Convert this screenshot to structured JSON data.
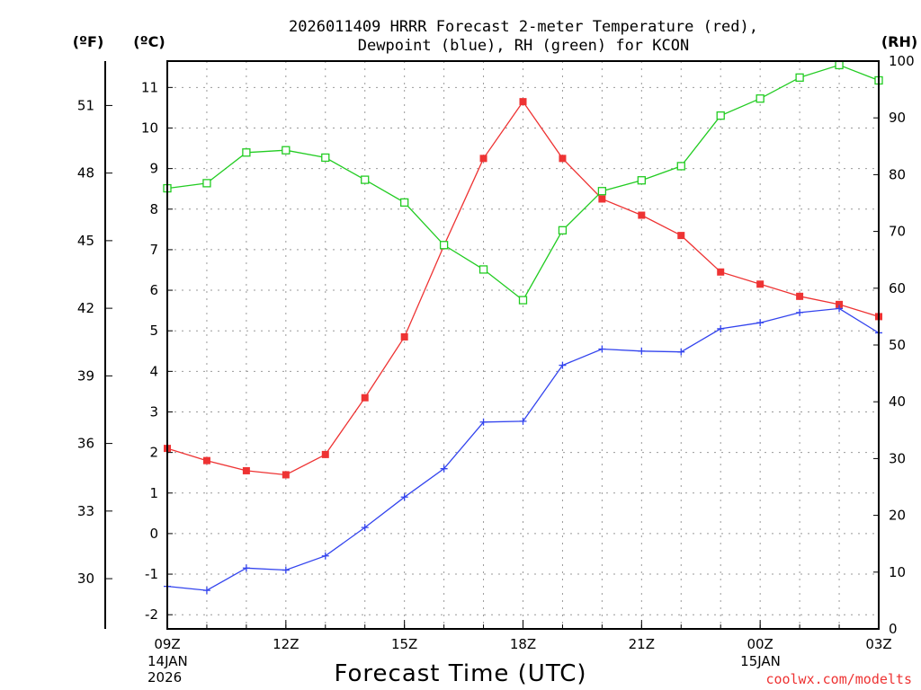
{
  "chart_data": {
    "type": "line",
    "title": "2026011409 HRRR Forecast 2-meter Temperature (red),",
    "subtitle": "Dewpoint (blue), RH (green) for KCON",
    "xlabel": "Forecast Time (UTC)",
    "credit": "coolwx.com/modelts",
    "units": {
      "fahrenheit": "(ºF)",
      "celsius": "(ºC)",
      "rh": "(RH)"
    },
    "grid": true,
    "x_hours": [
      0,
      1,
      2,
      3,
      4,
      5,
      6,
      7,
      8,
      9,
      10,
      11,
      12,
      13,
      14,
      15,
      16,
      17,
      18
    ],
    "x_range_hours": [
      0,
      18
    ],
    "x_ticks": [
      {
        "hour": 0,
        "label": "09Z",
        "date_line1": "14JAN",
        "date_line2": "2026"
      },
      {
        "hour": 3,
        "label": "12Z"
      },
      {
        "hour": 6,
        "label": "15Z"
      },
      {
        "hour": 9,
        "label": "18Z"
      },
      {
        "hour": 12,
        "label": "21Z"
      },
      {
        "hour": 15,
        "label": "00Z",
        "date_line1": "15JAN"
      },
      {
        "hour": 18,
        "label": "03Z"
      }
    ],
    "y_celsius": {
      "range": [
        -2.35,
        11.65
      ],
      "ticks": [
        -2,
        -1,
        0,
        1,
        2,
        3,
        4,
        5,
        6,
        7,
        8,
        9,
        10,
        11
      ]
    },
    "y_fahrenheit": {
      "ticks": [
        30,
        33,
        36,
        39,
        42,
        45,
        48,
        51
      ]
    },
    "y_rh": {
      "range": [
        0,
        100
      ],
      "ticks": [
        0,
        10,
        20,
        30,
        40,
        50,
        60,
        70,
        80,
        90,
        100
      ]
    },
    "series": [
      {
        "name": "Temperature",
        "color": "#ee3333",
        "marker": "filled-square",
        "axis": "celsius",
        "values": [
          2.1,
          1.8,
          1.55,
          1.45,
          1.95,
          3.35,
          4.85,
          7.1,
          9.25,
          10.65,
          9.25,
          8.25,
          7.85,
          7.35,
          6.45,
          6.15,
          5.85,
          5.65,
          5.35
        ]
      },
      {
        "name": "Dewpoint",
        "color": "#3344ee",
        "marker": "plus",
        "axis": "celsius",
        "values": [
          -1.3,
          -1.4,
          -0.85,
          -0.9,
          -0.55,
          0.15,
          0.9,
          1.6,
          2.75,
          2.77,
          4.15,
          4.55,
          4.5,
          4.48,
          5.05,
          5.2,
          5.45,
          5.55,
          4.95
        ]
      },
      {
        "name": "RH",
        "color": "#22cc22",
        "marker": "open-square",
        "axis": "rh",
        "values": [
          77.6,
          78.5,
          83.9,
          84.3,
          83.0,
          79.1,
          75.1,
          67.6,
          63.3,
          57.9,
          70.2,
          77.1,
          79.0,
          81.5,
          90.4,
          93.4,
          97.1,
          99.3,
          96.6
        ]
      }
    ]
  }
}
